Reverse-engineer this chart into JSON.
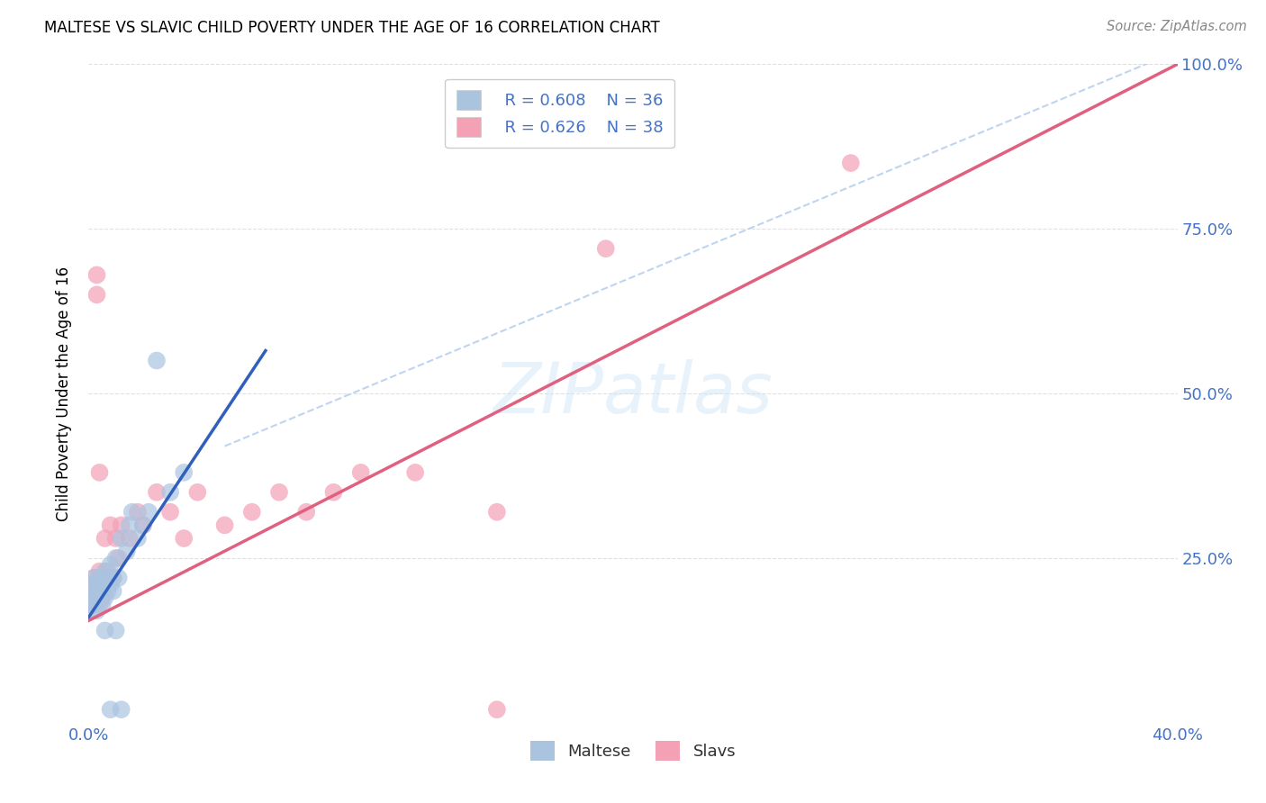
{
  "title": "MALTESE VS SLAVIC CHILD POVERTY UNDER THE AGE OF 16 CORRELATION CHART",
  "source": "Source: ZipAtlas.com",
  "tick_color": "#4472c4",
  "ylabel": "Child Poverty Under the Age of 16",
  "xlim": [
    0.0,
    0.4
  ],
  "ylim": [
    0.0,
    1.0
  ],
  "xtick_labels": [
    "0.0%",
    "",
    "",
    "",
    "40.0%"
  ],
  "ytick_labels_right": [
    "",
    "25.0%",
    "50.0%",
    "75.0%",
    "100.0%"
  ],
  "yticks_right": [
    0.0,
    0.25,
    0.5,
    0.75,
    1.0
  ],
  "legend_r_maltese": "R = 0.608",
  "legend_n_maltese": "N = 36",
  "legend_r_slavs": "R = 0.626",
  "legend_n_slavs": "N = 38",
  "maltese_color": "#aac4e0",
  "slavs_color": "#f4a0b5",
  "maltese_line_color": "#3060bb",
  "slavs_line_color": "#e06080",
  "diagonal_color": "#b8d0ee",
  "background_color": "#ffffff",
  "grid_color": "#dddddd",
  "maltese_x": [
    0.001,
    0.001,
    0.001,
    0.002,
    0.002,
    0.002,
    0.003,
    0.003,
    0.004,
    0.004,
    0.005,
    0.005,
    0.006,
    0.006,
    0.007,
    0.007,
    0.008,
    0.008,
    0.009,
    0.009,
    0.01,
    0.011,
    0.012,
    0.014,
    0.015,
    0.016,
    0.018,
    0.02,
    0.022,
    0.025,
    0.03,
    0.035,
    0.008,
    0.012,
    0.01,
    0.006
  ],
  "maltese_y": [
    0.17,
    0.19,
    0.21,
    0.18,
    0.2,
    0.22,
    0.17,
    0.19,
    0.2,
    0.22,
    0.18,
    0.21,
    0.19,
    0.23,
    0.2,
    0.22,
    0.24,
    0.21,
    0.22,
    0.2,
    0.25,
    0.22,
    0.28,
    0.26,
    0.3,
    0.32,
    0.28,
    0.3,
    0.32,
    0.55,
    0.35,
    0.38,
    0.02,
    0.02,
    0.14,
    0.14
  ],
  "slavs_x": [
    0.001,
    0.001,
    0.002,
    0.002,
    0.003,
    0.003,
    0.004,
    0.004,
    0.005,
    0.005,
    0.006,
    0.006,
    0.007,
    0.008,
    0.009,
    0.01,
    0.011,
    0.012,
    0.015,
    0.018,
    0.02,
    0.025,
    0.03,
    0.035,
    0.04,
    0.05,
    0.06,
    0.07,
    0.08,
    0.09,
    0.1,
    0.12,
    0.15,
    0.003,
    0.004,
    0.19,
    0.28,
    0.15
  ],
  "slavs_y": [
    0.18,
    0.21,
    0.19,
    0.22,
    0.65,
    0.2,
    0.18,
    0.23,
    0.21,
    0.19,
    0.28,
    0.22,
    0.23,
    0.3,
    0.22,
    0.28,
    0.25,
    0.3,
    0.28,
    0.32,
    0.3,
    0.35,
    0.32,
    0.28,
    0.35,
    0.3,
    0.32,
    0.35,
    0.32,
    0.35,
    0.38,
    0.38,
    0.32,
    0.68,
    0.38,
    0.72,
    0.85,
    0.02
  ],
  "maltese_line": [
    0.0,
    0.065,
    0.16,
    0.565
  ],
  "slavs_line": [
    0.0,
    0.4,
    0.155,
    1.0
  ],
  "diag_line": [
    0.05,
    0.4,
    0.42,
    1.02
  ]
}
